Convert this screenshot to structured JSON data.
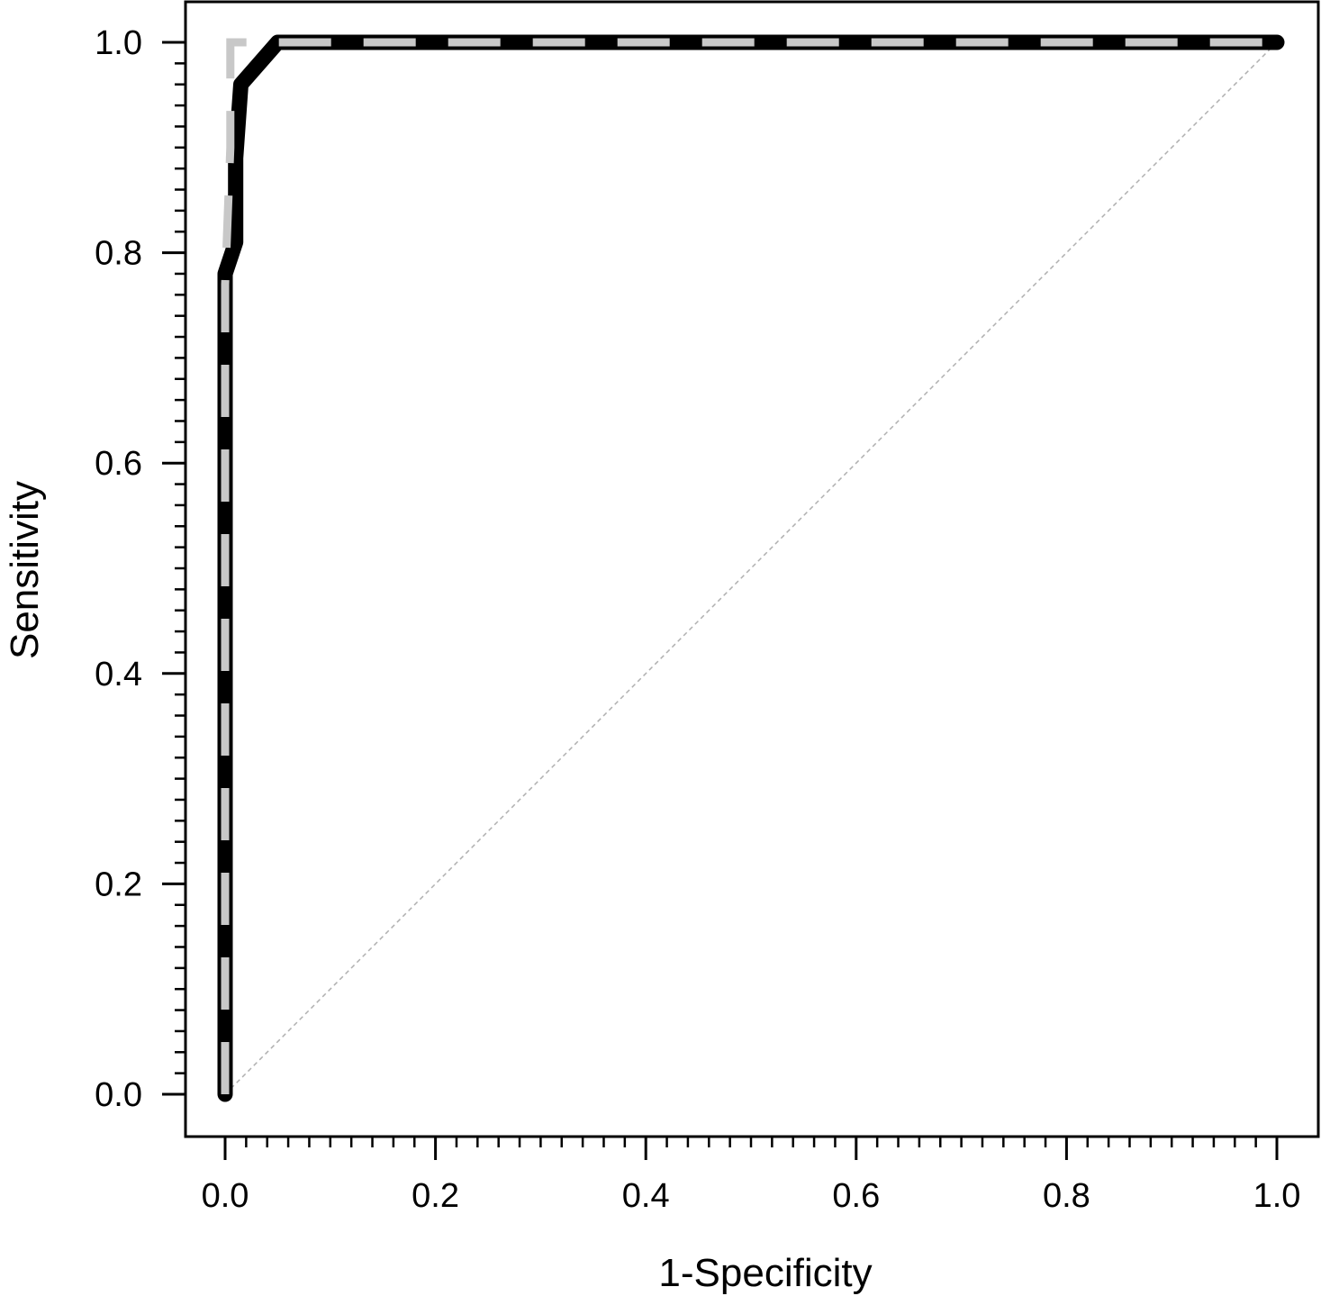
{
  "chart_data": {
    "type": "line",
    "title": "",
    "xlabel": "1-Specificity",
    "ylabel": "Sensitivity",
    "xlim": [
      -0.04,
      1.04
    ],
    "ylim": [
      -0.04,
      1.04
    ],
    "grid": false,
    "legend": "none",
    "x_ticks": [
      0.0,
      0.2,
      0.4,
      0.6,
      0.8,
      1.0
    ],
    "x_tick_labels": [
      "0.0",
      "0.2",
      "0.4",
      "0.6",
      "0.8",
      "1.0"
    ],
    "y_ticks": [
      0.0,
      0.2,
      0.4,
      0.6,
      0.8,
      1.0
    ],
    "y_tick_labels": [
      "0.0",
      "0.2",
      "0.4",
      "0.6",
      "0.8",
      "1.0"
    ],
    "minor_tick_step": 0.02,
    "series": [
      {
        "style": "solid-thick",
        "color": "#000000",
        "points": [
          [
            0.0,
            0.0
          ],
          [
            0.0,
            0.78
          ],
          [
            0.01,
            0.81
          ],
          [
            0.01,
            0.89
          ],
          [
            0.015,
            0.96
          ],
          [
            0.05,
            1.0
          ],
          [
            1.0,
            1.0
          ]
        ]
      },
      {
        "style": "dashed",
        "color": "#c8c8c8",
        "points": [
          [
            0.0,
            0.0
          ],
          [
            0.0,
            0.77
          ],
          [
            0.005,
            0.9
          ],
          [
            0.005,
            1.0
          ],
          [
            0.03,
            1.0
          ],
          [
            1.0,
            1.0
          ]
        ]
      },
      {
        "style": "reference-dotted",
        "color": "#b0b0b0",
        "points": [
          [
            0.0,
            0.0
          ],
          [
            1.0,
            1.0
          ]
        ]
      }
    ]
  }
}
